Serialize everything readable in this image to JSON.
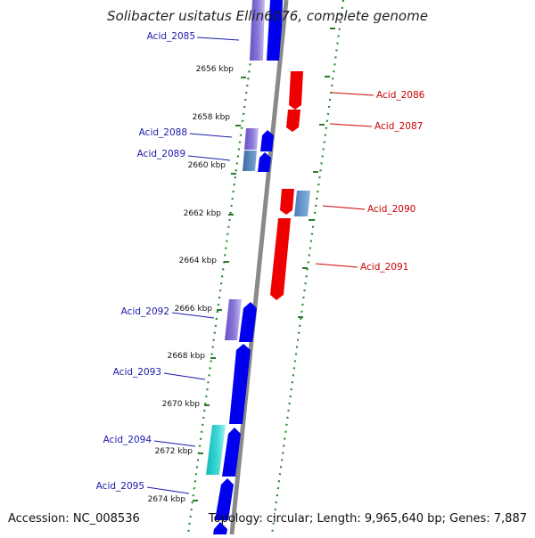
{
  "title": "Solibacter usitatus Ellin6076, complete genome",
  "accession": "Accession: NC_008536",
  "topology": "Topology: circular; Length: 9,965,640 bp; Genes: 7,887",
  "colors": {
    "forward_gene": "#0000ee",
    "reverse_gene": "#ee0000",
    "forward_label": "#1a1aaa",
    "reverse_label": "#cc0000",
    "dotted_track": "#2a8a2a",
    "backbone": "#888888"
  },
  "kbp_labels": [
    "2656 kbp",
    "2658 kbp",
    "2660 kbp",
    "2662 kbp",
    "2664 kbp",
    "2666 kbp",
    "2668 kbp",
    "2670 kbp",
    "2672 kbp",
    "2674 kbp"
  ],
  "forward_genes": [
    {
      "name": "Acid_2085"
    },
    {
      "name": "Acid_2088"
    },
    {
      "name": "Acid_2089"
    },
    {
      "name": "Acid_2092"
    },
    {
      "name": "Acid_2093"
    },
    {
      "name": "Acid_2094"
    },
    {
      "name": "Acid_2095"
    }
  ],
  "reverse_genes": [
    {
      "name": "Acid_2086"
    },
    {
      "name": "Acid_2087"
    },
    {
      "name": "Acid_2090"
    },
    {
      "name": "Acid_2091"
    }
  ]
}
